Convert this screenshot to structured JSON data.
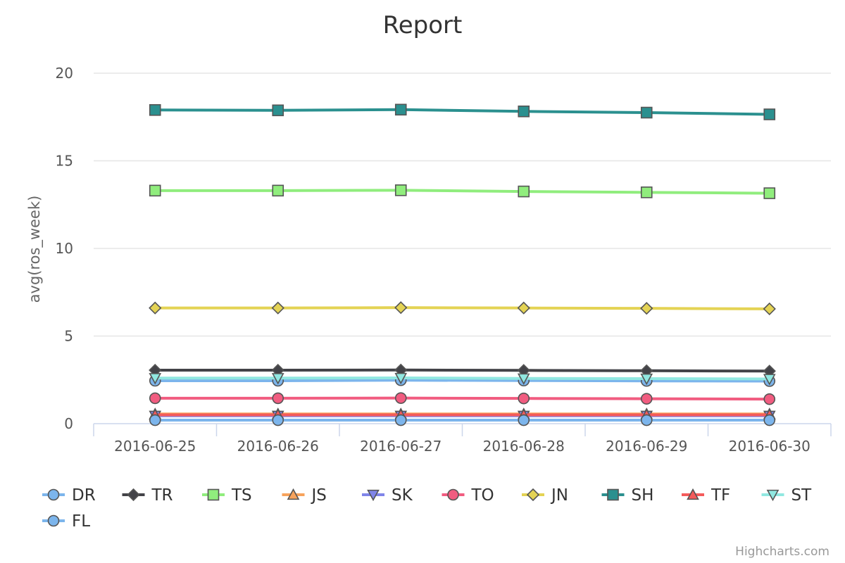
{
  "chart_data": {
    "type": "line",
    "title": "Report",
    "xlabel": "",
    "ylabel": "avg(ros_week)",
    "ylim": [
      0,
      20
    ],
    "yticks": [
      0,
      5,
      10,
      15,
      20
    ],
    "grid": true,
    "legend_position": "bottom",
    "categories": [
      "2016-06-25",
      "2016-06-26",
      "2016-06-27",
      "2016-06-28",
      "2016-06-29",
      "2016-06-30"
    ],
    "series": [
      {
        "name": "DR",
        "color": "#7cb5ec",
        "marker": "circle",
        "values": [
          2.45,
          2.45,
          2.48,
          2.46,
          2.44,
          2.43
        ]
      },
      {
        "name": "TR",
        "color": "#434348",
        "marker": "diamond",
        "values": [
          3.05,
          3.05,
          3.06,
          3.04,
          3.02,
          3.0
        ]
      },
      {
        "name": "TS",
        "color": "#90ed7d",
        "marker": "square",
        "values": [
          13.3,
          13.3,
          13.32,
          13.25,
          13.2,
          13.15
        ]
      },
      {
        "name": "JS",
        "color": "#f7a35c",
        "marker": "triangle",
        "values": [
          0.55,
          0.55,
          0.55,
          0.55,
          0.55,
          0.55
        ]
      },
      {
        "name": "SK",
        "color": "#8085e9",
        "marker": "triangle-down",
        "values": [
          0.45,
          0.45,
          0.45,
          0.45,
          0.45,
          0.45
        ]
      },
      {
        "name": "TO",
        "color": "#f15c80",
        "marker": "circle",
        "values": [
          1.45,
          1.45,
          1.46,
          1.44,
          1.42,
          1.4
        ]
      },
      {
        "name": "JN",
        "color": "#e4d354",
        "marker": "diamond",
        "values": [
          6.6,
          6.6,
          6.62,
          6.6,
          6.58,
          6.55
        ]
      },
      {
        "name": "SH",
        "color": "#2b908f",
        "marker": "square",
        "values": [
          17.9,
          17.88,
          17.92,
          17.82,
          17.75,
          17.65
        ]
      },
      {
        "name": "TF",
        "color": "#f45b5b",
        "marker": "triangle",
        "values": [
          0.5,
          0.5,
          0.5,
          0.5,
          0.5,
          0.5
        ]
      },
      {
        "name": "ST",
        "color": "#91e8e1",
        "marker": "triangle-down",
        "values": [
          2.6,
          2.6,
          2.61,
          2.58,
          2.57,
          2.55
        ]
      },
      {
        "name": "FL",
        "color": "#7cb5ec",
        "marker": "circle",
        "values": [
          0.2,
          0.2,
          0.2,
          0.2,
          0.2,
          0.2
        ]
      }
    ],
    "credits": "Highcharts.com"
  }
}
